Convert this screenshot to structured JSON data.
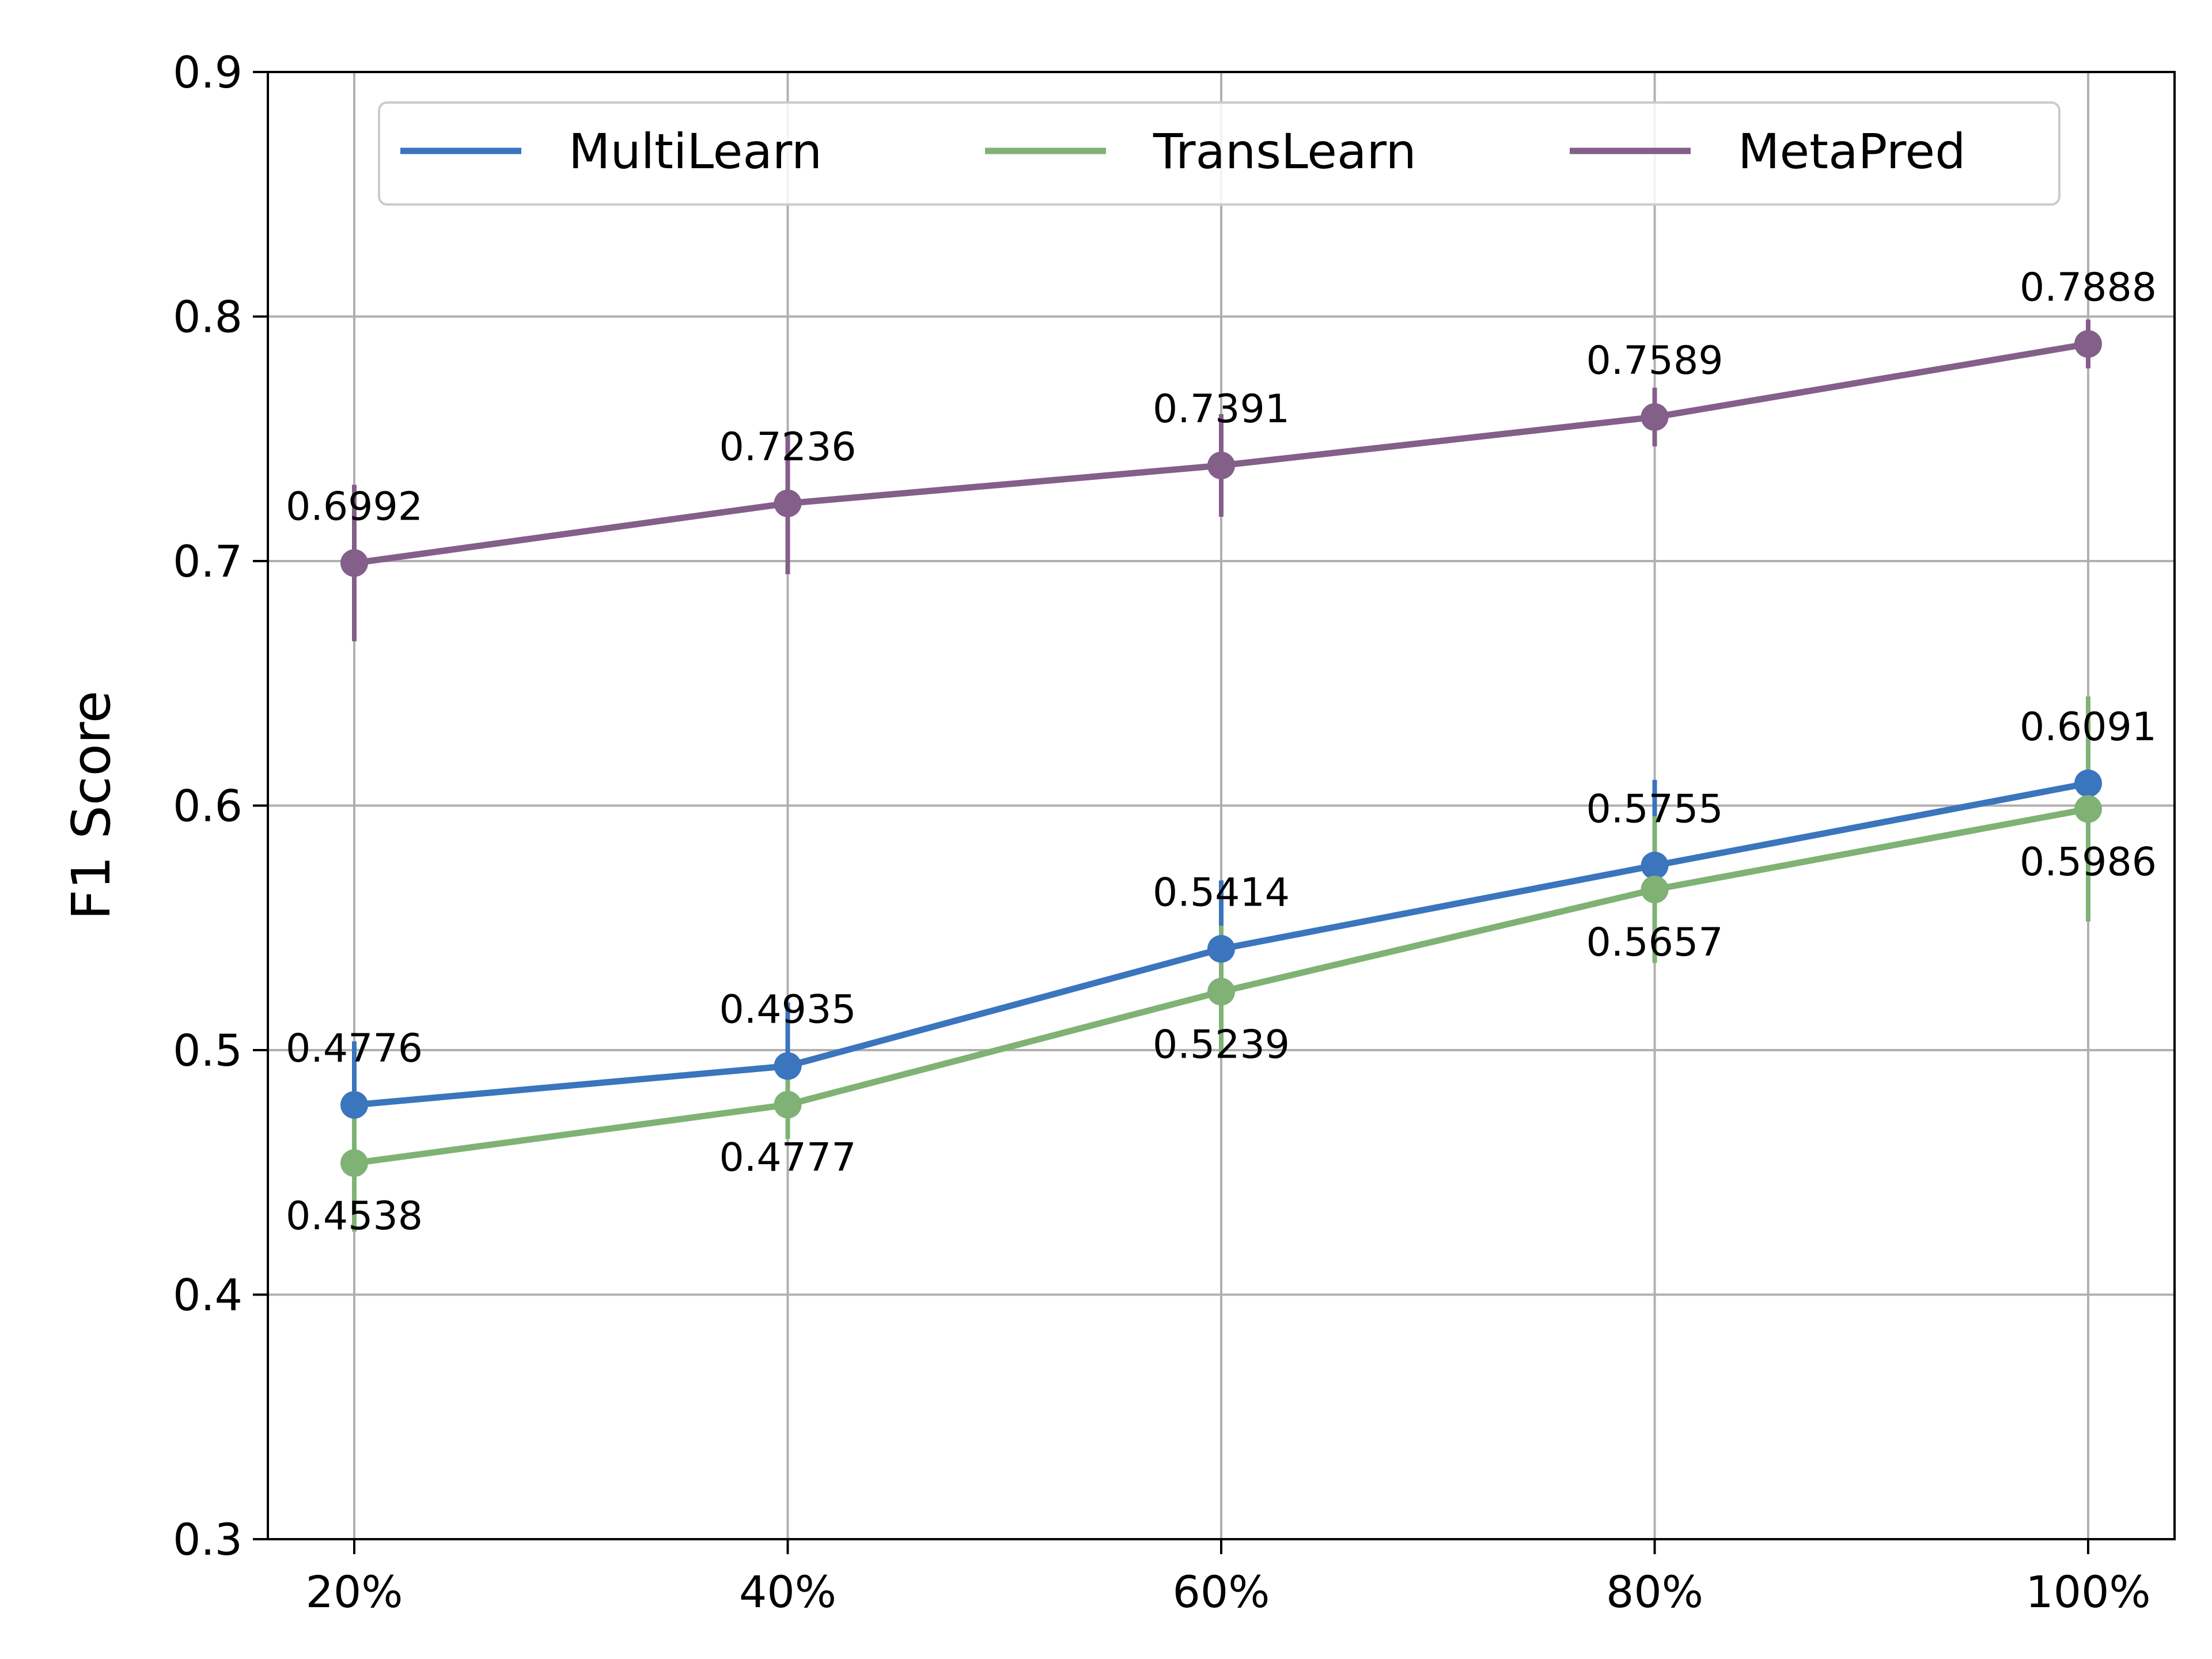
{
  "chart_data": {
    "type": "line",
    "title": "",
    "xlabel": "",
    "ylabel": "F1 Score",
    "categories": [
      "20%",
      "40%",
      "60%",
      "80%",
      "100%"
    ],
    "ylim": [
      0.3,
      0.9
    ],
    "yticks": [
      "0.3",
      "0.4",
      "0.5",
      "0.6",
      "0.7",
      "0.8",
      "0.9"
    ],
    "grid": true,
    "legend": "top-center",
    "series": [
      {
        "name": "MultiLearn",
        "color": "#3a75bd",
        "values": [
          0.4776,
          0.4935,
          0.5414,
          0.5755,
          0.6091
        ],
        "labels": [
          "0.4776",
          "0.4935",
          "0.5414",
          "0.5755",
          "0.6091"
        ],
        "error": [
          0.026,
          0.026,
          0.028,
          0.035,
          0.03
        ],
        "label_position": "above"
      },
      {
        "name": "TransLearn",
        "color": "#7fb274",
        "values": [
          0.4538,
          0.4777,
          0.5239,
          0.5657,
          0.5986
        ],
        "labels": [
          "0.4538",
          "0.4777",
          "0.5239",
          "0.5657",
          "0.5986"
        ],
        "error": [
          0.028,
          0.014,
          0.027,
          0.03,
          0.046
        ],
        "label_position": "below"
      },
      {
        "name": "MetaPred",
        "color": "#835f8a",
        "values": [
          0.6992,
          0.7236,
          0.7391,
          0.7589,
          0.7888
        ],
        "labels": [
          "0.6992",
          "0.7236",
          "0.7391",
          "0.7589",
          "0.7888"
        ],
        "error": [
          0.032,
          0.029,
          0.021,
          0.012,
          0.01
        ],
        "label_position": "above"
      }
    ]
  }
}
